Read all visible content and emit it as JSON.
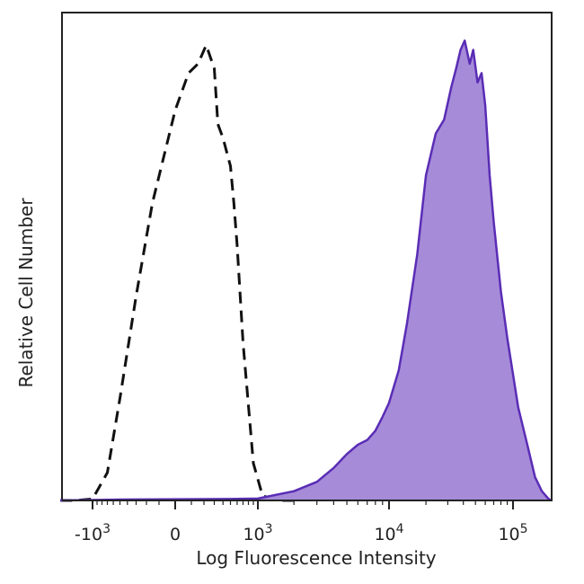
{
  "chart_data": {
    "type": "area",
    "title": "",
    "xlabel": "Log Fluorescence Intensity",
    "ylabel": "Relative Cell Number",
    "x_scale": "biexponential",
    "xlim": [
      -2000,
      200000
    ],
    "ylim": [
      0,
      1
    ],
    "x_ticks": [
      {
        "value": -1000,
        "base": "-10",
        "exp": "3"
      },
      {
        "value": 0,
        "base": "0",
        "exp": ""
      },
      {
        "value": 1000,
        "base": "10",
        "exp": "3"
      },
      {
        "value": 10000,
        "base": "10",
        "exp": "4"
      },
      {
        "value": 100000,
        "base": "10",
        "exp": "5"
      }
    ],
    "grid": false,
    "legend": "none",
    "series": [
      {
        "style": "dashed",
        "fill": "none",
        "color": "#111111",
        "x": [
          -2000,
          -1500,
          -1000,
          -700,
          -500,
          -300,
          -150,
          0,
          80,
          150,
          220,
          300,
          340,
          400,
          500,
          550,
          600,
          700,
          900,
          1100,
          1500,
          2000
        ],
        "y": [
          0,
          0,
          0.003,
          0.06,
          0.22,
          0.44,
          0.64,
          0.84,
          0.92,
          0.94,
          0.98,
          0.93,
          0.81,
          0.78,
          0.72,
          0.64,
          0.55,
          0.34,
          0.08,
          0.01,
          0,
          0
        ]
      },
      {
        "style": "solid",
        "fill": "#A68BD9",
        "color": "#5A2DB5",
        "x": [
          -2000,
          -500,
          500,
          1000,
          2000,
          3000,
          4000,
          5000,
          6000,
          7000,
          8000,
          9000,
          10000,
          12000,
          14000,
          17000,
          20000,
          24000,
          28000,
          32000,
          35000,
          38000,
          41000,
          45000,
          48000,
          52000,
          56000,
          60000,
          65000,
          70000,
          80000,
          90000,
          110000,
          130000,
          150000,
          170000,
          190000,
          200000
        ],
        "y": [
          0,
          0.002,
          0.003,
          0.004,
          0.02,
          0.04,
          0.07,
          0.1,
          0.12,
          0.13,
          0.15,
          0.18,
          0.21,
          0.28,
          0.38,
          0.53,
          0.7,
          0.79,
          0.82,
          0.89,
          0.93,
          0.97,
          0.99,
          0.94,
          0.97,
          0.9,
          0.92,
          0.85,
          0.7,
          0.6,
          0.45,
          0.35,
          0.2,
          0.12,
          0.05,
          0.02,
          0.005,
          0
        ]
      }
    ]
  }
}
